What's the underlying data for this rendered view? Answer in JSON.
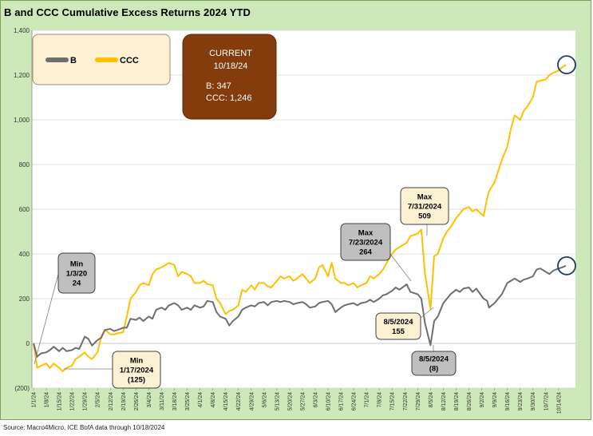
{
  "title": "B and CCC Cumulative Excess Returns 2024 YTD",
  "source": "Source: Macro4Micro, ICE BofA    data through 10/18/2024",
  "colors": {
    "B": "#6e6e6e",
    "CCC": "#ffc000",
    "current_box": "#843c0c",
    "legend_bg": "#fdf1d4"
  },
  "legend": [
    {
      "label": "B",
      "color": "#6e6e6e"
    },
    {
      "label": "CCC",
      "color": "#ffc000"
    }
  ],
  "current_box": {
    "line1": "CURRENT",
    "line2": "10/18/24",
    "line3": "B: 347",
    "line4": "CCC: 1,246"
  },
  "annotations": [
    {
      "id": "b-min",
      "lines": [
        "Min",
        "1/3/20",
        "24"
      ],
      "style": "gray"
    },
    {
      "id": "ccc-min",
      "lines": [
        "Min",
        "1/17/2024",
        "(125)"
      ],
      "style": "cream"
    },
    {
      "id": "b-max",
      "lines": [
        "Max",
        "7/23/2024",
        "264"
      ],
      "style": "gray"
    },
    {
      "id": "ccc-max",
      "lines": [
        "Max",
        "7/31/2024",
        "509"
      ],
      "style": "cream"
    },
    {
      "id": "ccc-aug",
      "lines": [
        "8/5/2024",
        "155"
      ],
      "style": "cream"
    },
    {
      "id": "b-aug",
      "lines": [
        "8/5/2024",
        "(8)"
      ],
      "style": "gray"
    }
  ],
  "chart_data": {
    "type": "line",
    "title": "B and CCC Cumulative Excess Returns 2024 YTD",
    "ylim": [
      -200,
      1400
    ],
    "yticks": [
      -200,
      0,
      200,
      400,
      600,
      800,
      1000,
      1200,
      1400
    ],
    "ytick_labels": [
      "(200)",
      "0",
      "200",
      "400",
      "600",
      "800",
      "1,000",
      "1,200",
      "1,400"
    ],
    "xlim": [
      "1/1/24",
      "10/18/24"
    ],
    "xtick_labels": [
      "1/1/24",
      "1/8/24",
      "1/15/24",
      "1/22/24",
      "1/29/24",
      "2/5/24",
      "2/12/24",
      "2/19/24",
      "2/26/24",
      "3/4/24",
      "3/11/24",
      "3/18/24",
      "3/25/24",
      "4/1/24",
      "4/8/24",
      "4/15/24",
      "4/22/24",
      "4/29/24",
      "5/6/24",
      "5/13/24",
      "5/20/24",
      "5/27/24",
      "6/3/24",
      "6/10/24",
      "6/17/24",
      "6/24/24",
      "7/1/24",
      "7/8/24",
      "7/15/24",
      "7/22/24",
      "7/29/24",
      "8/5/24",
      "8/12/24",
      "8/19/24",
      "8/26/24",
      "9/2/24",
      "9/9/24",
      "9/16/24",
      "9/23/24",
      "9/30/24",
      "10/7/24",
      "10/14/24"
    ],
    "grid": true,
    "series": [
      {
        "name": "B",
        "color": "#6e6e6e",
        "points": [
          [
            "1/1/24",
            0
          ],
          [
            "1/3/24",
            -60
          ],
          [
            "1/5/24",
            -45
          ],
          [
            "1/8/24",
            -40
          ],
          [
            "1/10/24",
            -30
          ],
          [
            "1/12/24",
            -15
          ],
          [
            "1/15/24",
            -35
          ],
          [
            "1/17/24",
            -20
          ],
          [
            "1/19/24",
            -35
          ],
          [
            "1/22/24",
            -30
          ],
          [
            "1/24/24",
            -20
          ],
          [
            "1/26/24",
            -25
          ],
          [
            "1/29/24",
            30
          ],
          [
            "1/31/24",
            20
          ],
          [
            "2/2/24",
            -10
          ],
          [
            "2/5/24",
            15
          ],
          [
            "2/7/24",
            25
          ],
          [
            "2/9/24",
            60
          ],
          [
            "2/12/24",
            65
          ],
          [
            "2/14/24",
            55
          ],
          [
            "2/16/24",
            60
          ],
          [
            "2/19/24",
            70
          ],
          [
            "2/21/24",
            70
          ],
          [
            "2/23/24",
            110
          ],
          [
            "2/26/24",
            105
          ],
          [
            "2/28/24",
            115
          ],
          [
            "3/1/24",
            100
          ],
          [
            "3/4/24",
            120
          ],
          [
            "3/6/24",
            110
          ],
          [
            "3/8/24",
            150
          ],
          [
            "3/11/24",
            160
          ],
          [
            "3/13/24",
            150
          ],
          [
            "3/15/24",
            170
          ],
          [
            "3/18/24",
            180
          ],
          [
            "3/20/24",
            170
          ],
          [
            "3/22/24",
            150
          ],
          [
            "3/25/24",
            160
          ],
          [
            "3/27/24",
            150
          ],
          [
            "3/29/24",
            170
          ],
          [
            "4/1/24",
            160
          ],
          [
            "4/3/24",
            165
          ],
          [
            "4/5/24",
            190
          ],
          [
            "4/8/24",
            185
          ],
          [
            "4/10/24",
            140
          ],
          [
            "4/12/24",
            120
          ],
          [
            "4/15/24",
            110
          ],
          [
            "4/17/24",
            80
          ],
          [
            "4/19/24",
            100
          ],
          [
            "4/22/24",
            120
          ],
          [
            "4/24/24",
            150
          ],
          [
            "4/26/24",
            160
          ],
          [
            "4/29/24",
            170
          ],
          [
            "5/1/24",
            165
          ],
          [
            "5/3/24",
            180
          ],
          [
            "5/6/24",
            185
          ],
          [
            "5/8/24",
            170
          ],
          [
            "5/10/24",
            185
          ],
          [
            "5/13/24",
            190
          ],
          [
            "5/15/24",
            185
          ],
          [
            "5/17/24",
            190
          ],
          [
            "5/20/24",
            185
          ],
          [
            "5/22/24",
            175
          ],
          [
            "5/24/24",
            180
          ],
          [
            "5/27/24",
            185
          ],
          [
            "5/29/24",
            175
          ],
          [
            "5/31/24",
            160
          ],
          [
            "6/3/24",
            165
          ],
          [
            "6/5/24",
            180
          ],
          [
            "6/7/24",
            185
          ],
          [
            "6/10/24",
            190
          ],
          [
            "6/12/24",
            175
          ],
          [
            "6/14/24",
            140
          ],
          [
            "6/17/24",
            160
          ],
          [
            "6/19/24",
            170
          ],
          [
            "6/21/24",
            175
          ],
          [
            "6/24/24",
            180
          ],
          [
            "6/26/24",
            170
          ],
          [
            "6/28/24",
            180
          ],
          [
            "7/1/24",
            185
          ],
          [
            "7/3/24",
            195
          ],
          [
            "7/5/24",
            185
          ],
          [
            "7/8/24",
            200
          ],
          [
            "7/10/24",
            215
          ],
          [
            "7/12/24",
            220
          ],
          [
            "7/15/24",
            235
          ],
          [
            "7/17/24",
            250
          ],
          [
            "7/19/24",
            240
          ],
          [
            "7/23/24",
            264
          ],
          [
            "7/25/24",
            230
          ],
          [
            "7/29/24",
            220
          ],
          [
            "7/31/24",
            200
          ],
          [
            "8/2/24",
            90
          ],
          [
            "8/5/24",
            -8
          ],
          [
            "8/7/24",
            100
          ],
          [
            "8/9/24",
            120
          ],
          [
            "8/12/24",
            180
          ],
          [
            "8/14/24",
            200
          ],
          [
            "8/16/24",
            220
          ],
          [
            "8/19/24",
            240
          ],
          [
            "8/21/24",
            230
          ],
          [
            "8/23/24",
            245
          ],
          [
            "8/26/24",
            250
          ],
          [
            "8/28/24",
            230
          ],
          [
            "8/30/24",
            245
          ],
          [
            "9/3/24",
            200
          ],
          [
            "9/5/24",
            190
          ],
          [
            "9/6/24",
            160
          ],
          [
            "9/9/24",
            180
          ],
          [
            "9/11/24",
            200
          ],
          [
            "9/13/24",
            220
          ],
          [
            "9/16/24",
            270
          ],
          [
            "9/18/24",
            280
          ],
          [
            "9/20/24",
            290
          ],
          [
            "9/23/24",
            275
          ],
          [
            "9/25/24",
            285
          ],
          [
            "9/27/24",
            290
          ],
          [
            "9/30/24",
            300
          ],
          [
            "10/2/24",
            330
          ],
          [
            "10/4/24",
            335
          ],
          [
            "10/7/24",
            320
          ],
          [
            "10/9/24",
            310
          ],
          [
            "10/11/24",
            325
          ],
          [
            "10/14/24",
            335
          ],
          [
            "10/16/24",
            340
          ],
          [
            "10/18/24",
            347
          ]
        ]
      },
      {
        "name": "CCC",
        "color": "#ffc000",
        "points": [
          [
            "1/1/24",
            0
          ],
          [
            "1/3/24",
            -110
          ],
          [
            "1/5/24",
            -100
          ],
          [
            "1/8/24",
            -90
          ],
          [
            "1/10/24",
            -110
          ],
          [
            "1/12/24",
            -90
          ],
          [
            "1/15/24",
            -110
          ],
          [
            "1/17/24",
            -125
          ],
          [
            "1/19/24",
            -110
          ],
          [
            "1/22/24",
            -100
          ],
          [
            "1/24/24",
            -70
          ],
          [
            "1/26/24",
            -60
          ],
          [
            "1/29/24",
            -40
          ],
          [
            "1/31/24",
            -60
          ],
          [
            "2/2/24",
            -70
          ],
          [
            "2/5/24",
            -40
          ],
          [
            "2/7/24",
            30
          ],
          [
            "2/9/24",
            60
          ],
          [
            "2/12/24",
            40
          ],
          [
            "2/14/24",
            40
          ],
          [
            "2/16/24",
            45
          ],
          [
            "2/19/24",
            50
          ],
          [
            "2/21/24",
            120
          ],
          [
            "2/23/24",
            200
          ],
          [
            "2/26/24",
            230
          ],
          [
            "2/28/24",
            260
          ],
          [
            "3/1/24",
            270
          ],
          [
            "3/4/24",
            260
          ],
          [
            "3/6/24",
            310
          ],
          [
            "3/8/24",
            330
          ],
          [
            "3/11/24",
            340
          ],
          [
            "3/13/24",
            350
          ],
          [
            "3/15/24",
            360
          ],
          [
            "3/18/24",
            350
          ],
          [
            "3/20/24",
            300
          ],
          [
            "3/22/24",
            320
          ],
          [
            "3/25/24",
            310
          ],
          [
            "3/27/24",
            300
          ],
          [
            "3/29/24",
            270
          ],
          [
            "4/1/24",
            270
          ],
          [
            "4/3/24",
            280
          ],
          [
            "4/5/24",
            265
          ],
          [
            "4/8/24",
            260
          ],
          [
            "4/10/24",
            200
          ],
          [
            "4/12/24",
            180
          ],
          [
            "4/15/24",
            130
          ],
          [
            "4/17/24",
            145
          ],
          [
            "4/19/24",
            150
          ],
          [
            "4/22/24",
            170
          ],
          [
            "4/24/24",
            240
          ],
          [
            "4/26/24",
            230
          ],
          [
            "4/29/24",
            260
          ],
          [
            "5/1/24",
            240
          ],
          [
            "5/3/24",
            270
          ],
          [
            "5/6/24",
            270
          ],
          [
            "5/8/24",
            255
          ],
          [
            "5/10/24",
            250
          ],
          [
            "5/13/24",
            280
          ],
          [
            "5/15/24",
            300
          ],
          [
            "5/17/24",
            290
          ],
          [
            "5/20/24",
            300
          ],
          [
            "5/22/24",
            280
          ],
          [
            "5/24/24",
            290
          ],
          [
            "5/27/24",
            310
          ],
          [
            "5/29/24",
            290
          ],
          [
            "5/31/24",
            270
          ],
          [
            "6/3/24",
            290
          ],
          [
            "6/5/24",
            340
          ],
          [
            "6/7/24",
            350
          ],
          [
            "6/10/24",
            300
          ],
          [
            "6/12/24",
            360
          ],
          [
            "6/14/24",
            290
          ],
          [
            "6/17/24",
            270
          ],
          [
            "6/19/24",
            270
          ],
          [
            "6/21/24",
            260
          ],
          [
            "6/24/24",
            270
          ],
          [
            "6/26/24",
            250
          ],
          [
            "6/28/24",
            260
          ],
          [
            "7/1/24",
            270
          ],
          [
            "7/3/24",
            300
          ],
          [
            "7/5/24",
            290
          ],
          [
            "7/8/24",
            310
          ],
          [
            "7/10/24",
            330
          ],
          [
            "7/12/24",
            360
          ],
          [
            "7/15/24",
            400
          ],
          [
            "7/17/24",
            420
          ],
          [
            "7/19/24",
            430
          ],
          [
            "7/23/24",
            450
          ],
          [
            "7/25/24",
            480
          ],
          [
            "7/29/24",
            490
          ],
          [
            "7/31/24",
            509
          ],
          [
            "8/2/24",
            310
          ],
          [
            "8/5/24",
            155
          ],
          [
            "8/7/24",
            390
          ],
          [
            "8/9/24",
            400
          ],
          [
            "8/12/24",
            470
          ],
          [
            "8/14/24",
            500
          ],
          [
            "8/16/24",
            520
          ],
          [
            "8/19/24",
            560
          ],
          [
            "8/21/24",
            580
          ],
          [
            "8/23/24",
            600
          ],
          [
            "8/26/24",
            610
          ],
          [
            "8/28/24",
            590
          ],
          [
            "8/30/24",
            600
          ],
          [
            "9/3/24",
            570
          ],
          [
            "9/5/24",
            650
          ],
          [
            "9/6/24",
            680
          ],
          [
            "9/9/24",
            720
          ],
          [
            "9/11/24",
            770
          ],
          [
            "9/13/24",
            820
          ],
          [
            "9/16/24",
            880
          ],
          [
            "9/18/24",
            960
          ],
          [
            "9/20/24",
            1020
          ],
          [
            "9/23/24",
            1000
          ],
          [
            "9/25/24",
            1040
          ],
          [
            "9/27/24",
            1060
          ],
          [
            "9/30/24",
            1100
          ],
          [
            "10/2/24",
            1170
          ],
          [
            "10/4/24",
            1175
          ],
          [
            "10/7/24",
            1180
          ],
          [
            "10/9/24",
            1200
          ],
          [
            "10/11/24",
            1210
          ],
          [
            "10/14/24",
            1220
          ],
          [
            "10/16/24",
            1235
          ],
          [
            "10/18/24",
            1246
          ]
        ]
      }
    ]
  }
}
